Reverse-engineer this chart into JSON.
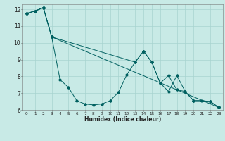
{
  "xlabel": "Humidex (Indice chaleur)",
  "xlim": [
    -0.5,
    23.5
  ],
  "ylim": [
    6,
    12.3
  ],
  "xticks": [
    0,
    1,
    2,
    3,
    4,
    5,
    6,
    7,
    8,
    9,
    10,
    11,
    12,
    13,
    14,
    15,
    16,
    17,
    18,
    19,
    20,
    21,
    22,
    23
  ],
  "yticks": [
    6,
    7,
    8,
    9,
    10,
    11,
    12
  ],
  "bg_color": "#c8eae6",
  "grid_color": "#a8d4d0",
  "line_color": "#006060",
  "line1_x": [
    0,
    1,
    2,
    3,
    4,
    5,
    6,
    7,
    8,
    9,
    10,
    11,
    12,
    13,
    14,
    15,
    16,
    17,
    18,
    19,
    20,
    21,
    22,
    23
  ],
  "line1_y": [
    11.75,
    11.9,
    12.1,
    10.35,
    7.8,
    7.35,
    6.55,
    6.35,
    6.3,
    6.35,
    6.55,
    7.05,
    8.1,
    8.85,
    9.5,
    8.85,
    7.6,
    7.1,
    8.05,
    7.1,
    6.55,
    6.55,
    6.5,
    6.15
  ],
  "line2_x": [
    0,
    1,
    2,
    3,
    23
  ],
  "line2_y": [
    11.75,
    11.9,
    12.1,
    10.35,
    6.15
  ],
  "line3_x": [
    0,
    1,
    2,
    3,
    13,
    14,
    15,
    16,
    17,
    18,
    19,
    20,
    21,
    22,
    23
  ],
  "line3_y": [
    11.75,
    11.9,
    12.1,
    10.35,
    8.85,
    9.5,
    8.85,
    7.6,
    8.05,
    7.2,
    7.1,
    6.55,
    6.55,
    6.5,
    6.15
  ]
}
